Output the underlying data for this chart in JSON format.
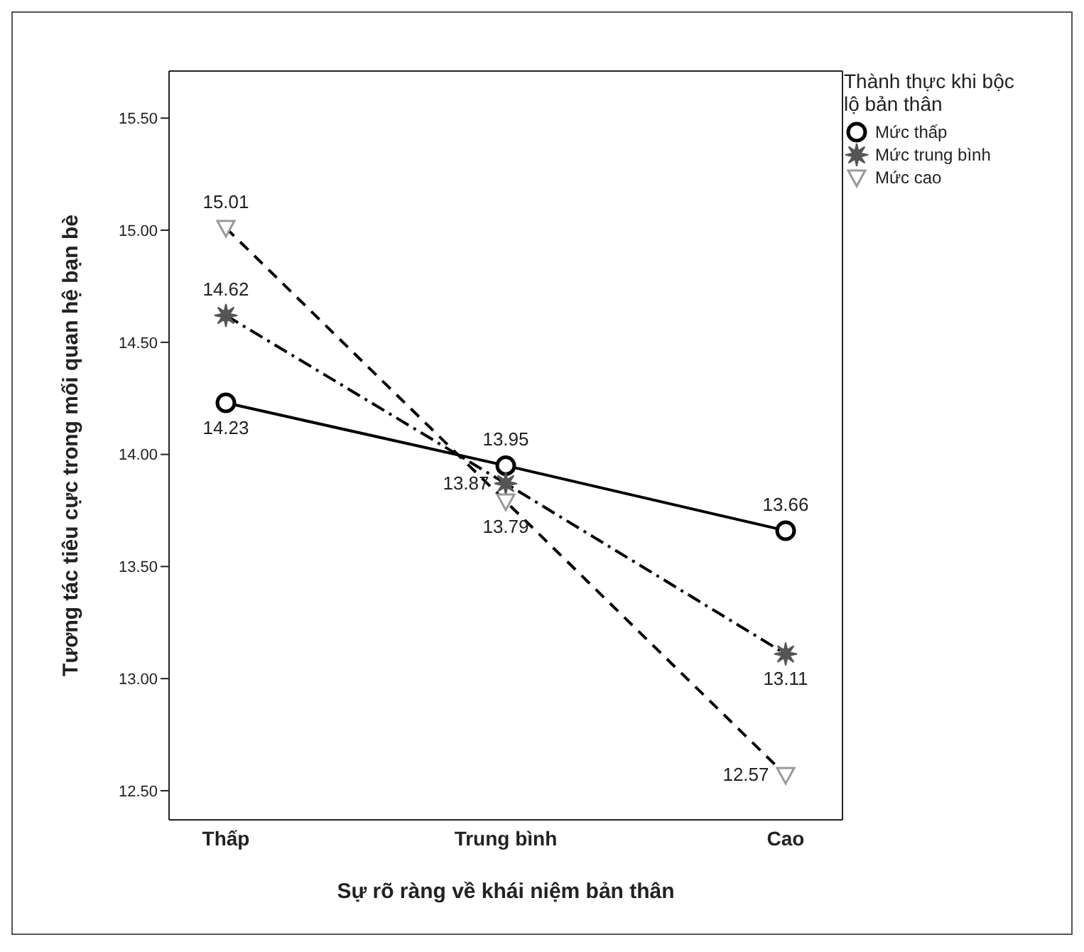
{
  "chart_data": {
    "type": "line",
    "xlabel": "Sự rõ ràng về khái niệm bản thân",
    "ylabel": "Tương tác tiêu cực trong mối quan hệ bạn bè",
    "legend_title": "Thành thực khi bộc lộ bản thân",
    "categories": [
      "Thấp",
      "Trung bình",
      "Cao"
    ],
    "series": [
      {
        "name": "Mức thấp",
        "color": "#000000",
        "values": [
          14.23,
          13.95,
          13.66
        ],
        "marker": "circle",
        "line_style": "solid"
      },
      {
        "name": "Mức trung bình",
        "color": "#555555",
        "values": [
          14.62,
          13.87,
          13.11
        ],
        "marker": "star",
        "line_style": "dashdot"
      },
      {
        "name": "Mức cao",
        "color": "#999999",
        "values": [
          15.01,
          13.79,
          12.57
        ],
        "marker": "triangle",
        "line_style": "dashed"
      }
    ],
    "ylim": [
      12.37,
      15.71
    ],
    "yticks": [
      {
        "value": 12.5,
        "label": "12.50"
      },
      {
        "value": 13,
        "label": "13.00"
      },
      {
        "value": 13.5,
        "label": "13.50"
      },
      {
        "value": 14,
        "label": "14.00"
      },
      {
        "value": 14.5,
        "label": "14.50"
      },
      {
        "value": 15,
        "label": "15.00"
      },
      {
        "value": 15.5,
        "label": "15.50"
      }
    ],
    "data_labels": true,
    "legend": "top right",
    "grid": false
  }
}
